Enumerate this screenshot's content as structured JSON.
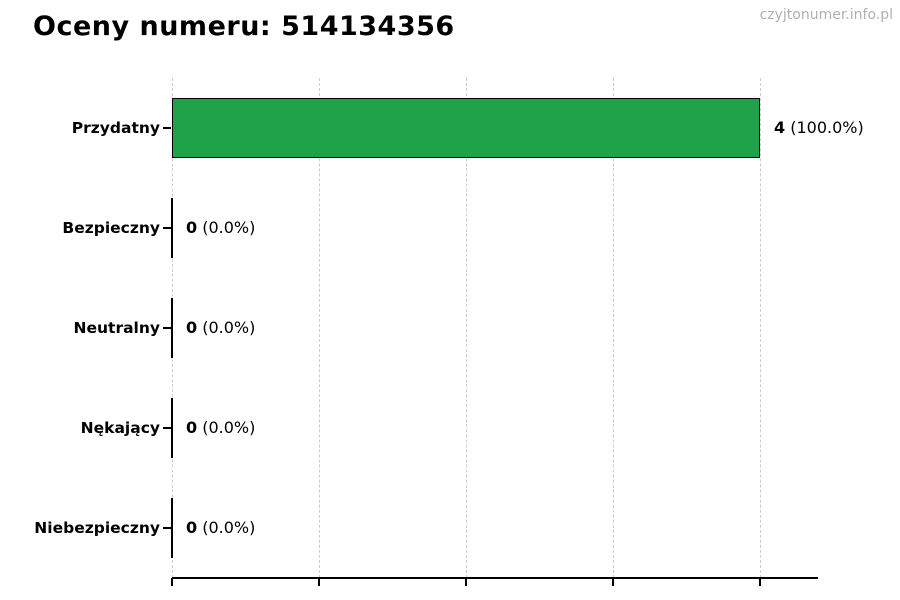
{
  "header": {
    "title": "Oceny numeru: 514134356",
    "watermark": "czyjtonumer.info.pl"
  },
  "chart_data": {
    "type": "bar",
    "orientation": "horizontal",
    "title": "Oceny numeru: 514134356",
    "categories": [
      "Przydatny",
      "Bezpieczny",
      "Neutralny",
      "Nękający",
      "Niebezpieczny"
    ],
    "values": [
      4,
      0,
      0,
      0,
      0
    ],
    "percentages": [
      "100.0%",
      "0.0%",
      "0.0%",
      "0.0%",
      "0.0%"
    ],
    "value_labels": [
      "4 (100.0%)",
      "0 (0.0%)",
      "0 (0.0%)",
      "0 (0.0%)",
      "0 (0.0%)"
    ],
    "xlabel": "",
    "ylabel": "",
    "xlim": [
      0,
      4.4
    ],
    "x_ticks": [
      0,
      1,
      2,
      3,
      4
    ],
    "x_tick_labels_shown": false,
    "grid": true,
    "grid_style": "dashed",
    "grid_color": "#cccccc",
    "bar_color": "#1fa34a",
    "bar_edge_color": "#000000",
    "background_color": "#ffffff",
    "watermark_color": "#b0b0b0"
  }
}
